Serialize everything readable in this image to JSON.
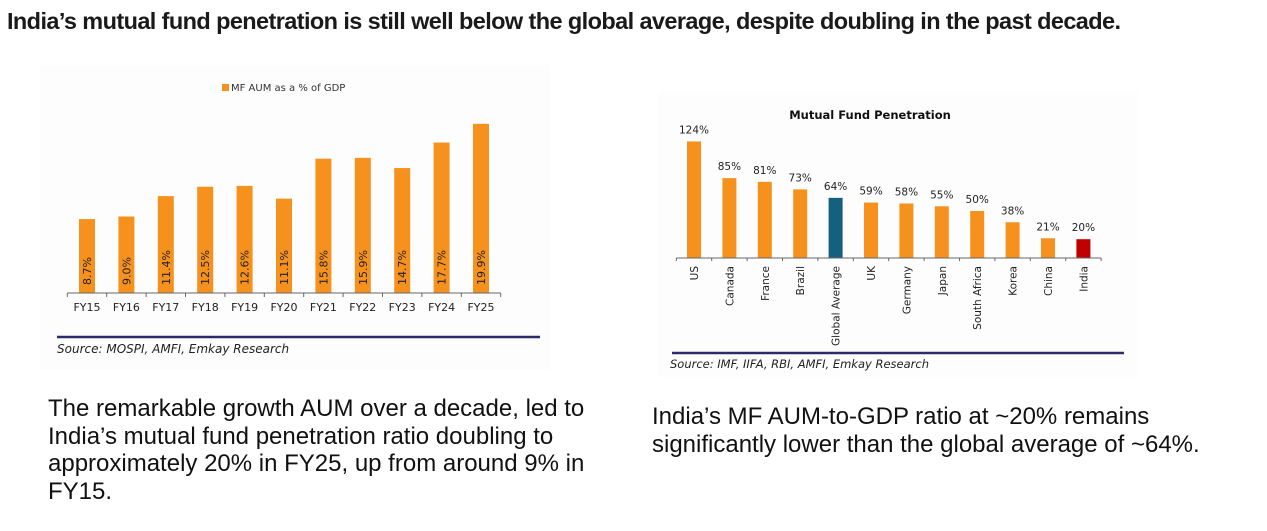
{
  "headline": "India’s mutual fund penetration is still well below the global average, despite doubling in the past decade.",
  "chart_data": [
    {
      "type": "bar",
      "title": "",
      "legend": {
        "label": "MF AUM as a % of GDP",
        "placement": "top-center",
        "color": "#F7911E"
      },
      "categories": [
        "FY15",
        "FY16",
        "FY17",
        "FY18",
        "FY19",
        "FY20",
        "FY21",
        "FY22",
        "FY23",
        "FY24",
        "FY25"
      ],
      "values": [
        8.7,
        9.0,
        11.4,
        12.5,
        12.6,
        11.1,
        15.8,
        15.9,
        14.7,
        17.7,
        19.9
      ],
      "data_labels": [
        "8.7%",
        "9.0%",
        "11.4%",
        "12.5%",
        "12.6%",
        "11.1%",
        "15.8%",
        "15.9%",
        "14.7%",
        "17.7%",
        "19.9%"
      ],
      "data_label_position": "inside-rotated",
      "xlabel": "",
      "ylabel": "",
      "ylim": [
        0,
        20
      ],
      "grid": false,
      "bar_color": "#F7911E",
      "source": "Source: MOSPI, AMFI, Emkay Research"
    },
    {
      "type": "bar",
      "title": "Mutual Fund Penetration",
      "categories": [
        "US",
        "Canada",
        "France",
        "Brazil",
        "Global Average",
        "UK",
        "Germany",
        "Japan",
        "South Africa",
        "Korea",
        "China",
        "India"
      ],
      "values": [
        124,
        85,
        81,
        73,
        64,
        59,
        58,
        55,
        50,
        38,
        21,
        20
      ],
      "data_labels": [
        "124%",
        "85%",
        "81%",
        "73%",
        "64%",
        "59%",
        "58%",
        "55%",
        "50%",
        "38%",
        "21%",
        "20%"
      ],
      "data_label_position": "above",
      "xlabel": "",
      "ylabel": "",
      "ylim": [
        0,
        124
      ],
      "grid": false,
      "bar_colors": [
        "#F7911E",
        "#F7911E",
        "#F7911E",
        "#F7911E",
        "#15607F",
        "#F7911E",
        "#F7911E",
        "#F7911E",
        "#F7911E",
        "#F7911E",
        "#F7911E",
        "#C00000"
      ],
      "source": "Source: IMF, IIFA, RBI, AMFI, Emkay Research"
    }
  ],
  "captions": {
    "left": "The remarkable growth AUM over a decade, led to India’s mutual fund penetration ratio doubling to approximately 20% in FY25, up from around 9% in FY15.",
    "right": "India’s MF AUM-to-GDP ratio at ~20% remains significantly lower than the global average of ~64%."
  },
  "colors": {
    "headline_text": "#1a1a1a",
    "source_rule": "#2B2A6B",
    "axis": "#555555"
  }
}
